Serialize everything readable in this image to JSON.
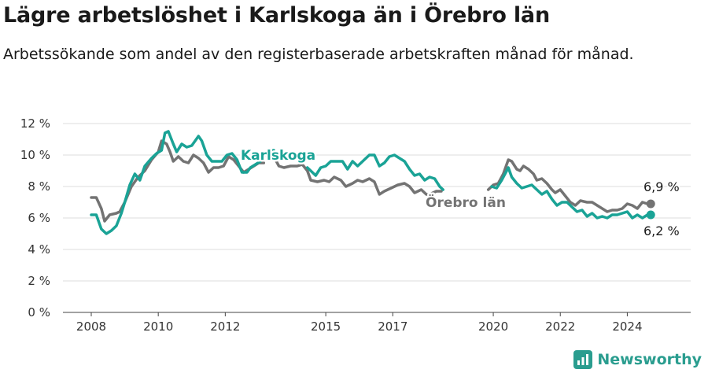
{
  "header": {
    "title": "Lägre arbetslöshet i Karlskoga än i Örebro län",
    "subtitle": "Arbetssökande som andel av den registerbaserade arbetskraften månad för månad."
  },
  "brand": {
    "name": "Newsworthy",
    "icon": "newsworthy-logo-icon"
  },
  "colors": {
    "karlskoga": "#1aa396",
    "orebro": "#737373"
  },
  "chart_data": {
    "type": "line",
    "title": "Lägre arbetslöshet i Karlskoga än i Örebro län",
    "x_unit": "year",
    "xlim": [
      2008.0,
      2025.0
    ],
    "ylim": [
      0,
      12
    ],
    "yticks": [
      {
        "value": 0,
        "label": "0 %"
      },
      {
        "value": 2,
        "label": "2 %"
      },
      {
        "value": 4,
        "label": "4 %"
      },
      {
        "value": 6,
        "label": "6 %"
      },
      {
        "value": 8,
        "label": "8 %"
      },
      {
        "value": 10,
        "label": "10 %"
      },
      {
        "value": 12,
        "label": "12 %"
      }
    ],
    "xticks": [
      {
        "value": 2008,
        "label": "2008"
      },
      {
        "value": 2010,
        "label": "2010"
      },
      {
        "value": 2012,
        "label": "2012"
      },
      {
        "value": 2015,
        "label": "2015"
      },
      {
        "value": 2017,
        "label": "2017"
      },
      {
        "value": 2020,
        "label": "2020"
      },
      {
        "value": 2022,
        "label": "2022"
      },
      {
        "value": 2024,
        "label": "2024"
      }
    ],
    "grid": true,
    "series": [
      {
        "name": "Örebro län",
        "color": "#737373",
        "end_label": "6,9 %",
        "segments": [
          [
            [
              2008.0,
              7.3
            ],
            [
              2008.15,
              7.3
            ],
            [
              2008.3,
              6.6
            ],
            [
              2008.4,
              5.8
            ],
            [
              2008.55,
              6.2
            ],
            [
              2008.75,
              6.3
            ],
            [
              2008.85,
              6.4
            ],
            [
              2009.0,
              7.0
            ],
            [
              2009.2,
              8.0
            ],
            [
              2009.4,
              8.6
            ],
            [
              2009.6,
              9.0
            ],
            [
              2009.8,
              9.7
            ],
            [
              2010.0,
              10.2
            ],
            [
              2010.1,
              10.9
            ],
            [
              2010.25,
              10.7
            ],
            [
              2010.35,
              10.2
            ],
            [
              2010.45,
              9.6
            ],
            [
              2010.6,
              9.9
            ],
            [
              2010.75,
              9.6
            ],
            [
              2010.9,
              9.5
            ],
            [
              2011.05,
              10.0
            ],
            [
              2011.2,
              9.8
            ],
            [
              2011.35,
              9.5
            ],
            [
              2011.5,
              8.9
            ],
            [
              2011.65,
              9.2
            ],
            [
              2011.8,
              9.2
            ],
            [
              2011.95,
              9.3
            ],
            [
              2012.1,
              9.9
            ],
            [
              2012.25,
              9.7
            ],
            [
              2012.4,
              9.3
            ],
            [
              2012.55,
              8.9
            ],
            [
              2012.7,
              9.1
            ],
            [
              2012.85,
              9.3
            ],
            [
              2013.0,
              9.5
            ],
            [
              2013.15,
              9.5
            ]
          ],
          [
            [
              2013.45,
              9.9
            ],
            [
              2013.6,
              9.3
            ],
            [
              2013.75,
              9.2
            ],
            [
              2013.95,
              9.3
            ],
            [
              2014.15,
              9.3
            ],
            [
              2014.3,
              9.4
            ],
            [
              2014.45,
              9.0
            ],
            [
              2014.55,
              8.4
            ],
            [
              2014.75,
              8.3
            ],
            [
              2014.95,
              8.4
            ],
            [
              2015.1,
              8.3
            ],
            [
              2015.25,
              8.6
            ],
            [
              2015.45,
              8.4
            ],
            [
              2015.6,
              8.0
            ],
            [
              2015.8,
              8.2
            ],
            [
              2015.95,
              8.4
            ],
            [
              2016.1,
              8.3
            ],
            [
              2016.3,
              8.5
            ],
            [
              2016.45,
              8.3
            ],
            [
              2016.6,
              7.5
            ],
            [
              2016.75,
              7.7
            ],
            [
              2016.95,
              7.9
            ],
            [
              2017.15,
              8.1
            ],
            [
              2017.35,
              8.2
            ],
            [
              2017.5,
              8.0
            ],
            [
              2017.65,
              7.6
            ],
            [
              2017.85,
              7.8
            ],
            [
              2018.0,
              7.5
            ],
            [
              2018.1,
              7.5
            ],
            [
              2018.3,
              7.7
            ],
            [
              2018.45,
              7.7
            ]
          ],
          [
            [
              2019.85,
              7.8
            ],
            [
              2020.0,
              8.1
            ],
            [
              2020.15,
              8.2
            ],
            [
              2020.3,
              8.8
            ],
            [
              2020.45,
              9.7
            ],
            [
              2020.55,
              9.6
            ],
            [
              2020.7,
              9.1
            ],
            [
              2020.8,
              9.0
            ],
            [
              2020.9,
              9.3
            ],
            [
              2021.05,
              9.1
            ],
            [
              2021.2,
              8.8
            ],
            [
              2021.3,
              8.4
            ],
            [
              2021.45,
              8.5
            ],
            [
              2021.6,
              8.2
            ],
            [
              2021.75,
              7.8
            ],
            [
              2021.85,
              7.6
            ],
            [
              2022.0,
              7.8
            ],
            [
              2022.15,
              7.4
            ],
            [
              2022.3,
              7.0
            ],
            [
              2022.45,
              6.8
            ],
            [
              2022.6,
              7.1
            ],
            [
              2022.8,
              7.0
            ],
            [
              2022.95,
              7.0
            ],
            [
              2023.1,
              6.8
            ],
            [
              2023.25,
              6.6
            ],
            [
              2023.4,
              6.4
            ],
            [
              2023.55,
              6.5
            ],
            [
              2023.7,
              6.5
            ],
            [
              2023.85,
              6.6
            ],
            [
              2024.0,
              6.9
            ],
            [
              2024.15,
              6.8
            ],
            [
              2024.3,
              6.6
            ],
            [
              2024.45,
              7.0
            ],
            [
              2024.6,
              6.9
            ],
            [
              2024.7,
              6.9
            ]
          ]
        ]
      },
      {
        "name": "Karlskoga",
        "color": "#1aa396",
        "end_label": "6,2 %",
        "segments": [
          [
            [
              2008.0,
              6.2
            ],
            [
              2008.15,
              6.2
            ],
            [
              2008.3,
              5.3
            ],
            [
              2008.45,
              5.0
            ],
            [
              2008.6,
              5.2
            ],
            [
              2008.75,
              5.5
            ],
            [
              2008.9,
              6.3
            ],
            [
              2009.0,
              7.0
            ],
            [
              2009.15,
              8.1
            ],
            [
              2009.3,
              8.8
            ],
            [
              2009.45,
              8.4
            ],
            [
              2009.6,
              9.3
            ],
            [
              2009.8,
              9.8
            ],
            [
              2009.95,
              10.1
            ],
            [
              2010.1,
              10.3
            ],
            [
              2010.2,
              11.4
            ],
            [
              2010.3,
              11.5
            ],
            [
              2010.45,
              10.7
            ],
            [
              2010.55,
              10.2
            ],
            [
              2010.7,
              10.7
            ],
            [
              2010.85,
              10.5
            ],
            [
              2011.0,
              10.6
            ],
            [
              2011.2,
              11.2
            ],
            [
              2011.3,
              10.9
            ],
            [
              2011.45,
              10.0
            ],
            [
              2011.6,
              9.6
            ],
            [
              2011.75,
              9.6
            ],
            [
              2011.9,
              9.6
            ],
            [
              2012.05,
              10.0
            ],
            [
              2012.2,
              10.1
            ],
            [
              2012.35,
              9.7
            ],
            [
              2012.5,
              8.9
            ],
            [
              2012.65,
              8.9
            ],
            [
              2012.75,
              9.2
            ],
            [
              2012.9,
              9.4
            ],
            [
              2013.05,
              9.6
            ],
            [
              2013.25,
              10.2
            ],
            [
              2013.45,
              10.3
            ]
          ],
          [
            [
              2014.45,
              9.2
            ],
            [
              2014.55,
              9.0
            ],
            [
              2014.7,
              8.7
            ],
            [
              2014.85,
              9.2
            ],
            [
              2015.0,
              9.3
            ],
            [
              2015.15,
              9.6
            ],
            [
              2015.3,
              9.6
            ],
            [
              2015.5,
              9.6
            ],
            [
              2015.65,
              9.1
            ],
            [
              2015.8,
              9.6
            ],
            [
              2015.95,
              9.3
            ],
            [
              2016.1,
              9.6
            ],
            [
              2016.3,
              10.0
            ],
            [
              2016.45,
              10.0
            ],
            [
              2016.6,
              9.3
            ],
            [
              2016.75,
              9.5
            ],
            [
              2016.9,
              9.9
            ],
            [
              2017.05,
              10.0
            ],
            [
              2017.2,
              9.8
            ],
            [
              2017.35,
              9.6
            ],
            [
              2017.5,
              9.1
            ],
            [
              2017.65,
              8.7
            ],
            [
              2017.8,
              8.8
            ],
            [
              2017.95,
              8.4
            ],
            [
              2018.1,
              8.6
            ],
            [
              2018.25,
              8.5
            ],
            [
              2018.4,
              8.0
            ],
            [
              2018.5,
              7.8
            ]
          ],
          [
            [
              2019.95,
              8.0
            ],
            [
              2020.1,
              7.9
            ],
            [
              2020.25,
              8.4
            ],
            [
              2020.4,
              9.0
            ],
            [
              2020.45,
              9.2
            ],
            [
              2020.55,
              8.6
            ],
            [
              2020.7,
              8.2
            ],
            [
              2020.85,
              7.9
            ],
            [
              2021.0,
              8.0
            ],
            [
              2021.15,
              8.1
            ],
            [
              2021.3,
              7.8
            ],
            [
              2021.45,
              7.5
            ],
            [
              2021.6,
              7.7
            ],
            [
              2021.75,
              7.2
            ],
            [
              2021.9,
              6.8
            ],
            [
              2022.05,
              7.0
            ],
            [
              2022.2,
              7.0
            ],
            [
              2022.35,
              6.7
            ],
            [
              2022.5,
              6.4
            ],
            [
              2022.65,
              6.5
            ],
            [
              2022.8,
              6.1
            ],
            [
              2022.95,
              6.3
            ],
            [
              2023.1,
              6.0
            ],
            [
              2023.25,
              6.1
            ],
            [
              2023.4,
              6.0
            ],
            [
              2023.55,
              6.2
            ],
            [
              2023.7,
              6.2
            ],
            [
              2023.85,
              6.3
            ],
            [
              2024.0,
              6.4
            ],
            [
              2024.15,
              6.0
            ],
            [
              2024.3,
              6.2
            ],
            [
              2024.45,
              6.0
            ],
            [
              2024.6,
              6.2
            ],
            [
              2024.7,
              6.2
            ]
          ]
        ]
      }
    ]
  }
}
